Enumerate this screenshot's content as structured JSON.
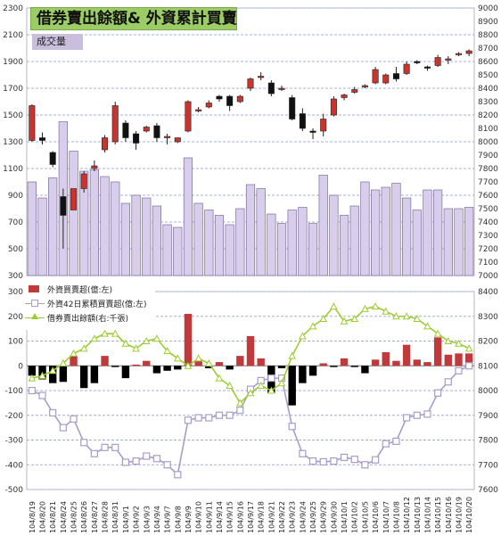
{
  "title": "借券賣出餘額& 外資累計買賣",
  "volume_label": "成交量",
  "legend": {
    "item1": "外資買賣超(億:左)",
    "item2": "外資42日累積買賣超(億:左)",
    "item3": "借券賣出餘額(右:千張)"
  },
  "colors": {
    "up_candle": "#c9342f",
    "down_candle": "#111111",
    "volume_bar": "#d8cdea",
    "volume_edge": "#6a5a8f",
    "foreign_buy": "#c0393b",
    "foreign_sell": "#000000",
    "cumulative": "#a99cc9",
    "lending": "#9ccc2e",
    "grid": "#9fb0d8"
  },
  "chart_data": [
    {
      "type": "candlestick",
      "title": "借券賣出餘額& 外資累計買賣",
      "left_axis": {
        "ylim": [
          300,
          2300
        ],
        "ticks": [
          "300",
          "500",
          "700",
          "900",
          "1100",
          "1300",
          "1500",
          "1700",
          "1900",
          "2100",
          "2300"
        ]
      },
      "right_axis": {
        "ylim": [
          7000,
          9000
        ],
        "ticks": [
          "7000",
          "7100",
          "7200",
          "7300",
          "7400",
          "7500",
          "7600",
          "7700",
          "7800",
          "7900",
          "8000",
          "8100",
          "8200",
          "8300",
          "8400",
          "8500",
          "8600",
          "8700",
          "8800",
          "8900",
          "9000"
        ]
      },
      "grid": true,
      "candles_right_axis": [
        {
          "open": 8010,
          "high": 8280,
          "low": 8000,
          "close": 8270
        },
        {
          "open": 8030,
          "high": 8070,
          "low": 7980,
          "close": 8010
        },
        {
          "open": 7920,
          "high": 7930,
          "low": 7810,
          "close": 7830
        },
        {
          "open": 7590,
          "high": 7650,
          "low": 7200,
          "close": 7450
        },
        {
          "open": 7490,
          "high": 7640,
          "low": 7490,
          "close": 7650
        },
        {
          "open": 7650,
          "high": 7780,
          "low": 7620,
          "close": 7760
        },
        {
          "open": 7800,
          "high": 7860,
          "low": 7780,
          "close": 7820
        },
        {
          "open": 7940,
          "high": 8050,
          "low": 7920,
          "close": 8030
        },
        {
          "open": 8000,
          "high": 8300,
          "low": 7980,
          "close": 8270
        },
        {
          "open": 8140,
          "high": 8160,
          "low": 8000,
          "close": 8030
        },
        {
          "open": 8060,
          "high": 8080,
          "low": 7940,
          "close": 7990
        },
        {
          "open": 8080,
          "high": 8120,
          "low": 8070,
          "close": 8110
        },
        {
          "open": 8120,
          "high": 8140,
          "low": 8000,
          "close": 8030
        },
        {
          "open": 8040,
          "high": 8060,
          "low": 7980,
          "close": 8040
        },
        {
          "open": 8000,
          "high": 8030,
          "low": 7990,
          "close": 8030
        },
        {
          "open": 8080,
          "high": 8310,
          "low": 8070,
          "close": 8300
        },
        {
          "open": 8240,
          "high": 8260,
          "low": 8220,
          "close": 8240
        },
        {
          "open": 8260,
          "high": 8310,
          "low": 8250,
          "close": 8290
        },
        {
          "open": 8340,
          "high": 8350,
          "low": 8300,
          "close": 8320
        },
        {
          "open": 8340,
          "high": 8350,
          "low": 8230,
          "close": 8270
        },
        {
          "open": 8300,
          "high": 8350,
          "low": 8290,
          "close": 8340
        },
        {
          "open": 8400,
          "high": 8480,
          "low": 8380,
          "close": 8470
        },
        {
          "open": 8480,
          "high": 8520,
          "low": 8460,
          "close": 8490
        },
        {
          "open": 8440,
          "high": 8460,
          "low": 8340,
          "close": 8360
        },
        {
          "open": 8390,
          "high": 8420,
          "low": 8380,
          "close": 8400
        },
        {
          "open": 8330,
          "high": 8350,
          "low": 8160,
          "close": 8170
        },
        {
          "open": 8210,
          "high": 8250,
          "low": 8080,
          "close": 8100
        },
        {
          "open": 8080,
          "high": 8100,
          "low": 8020,
          "close": 8070
        },
        {
          "open": 8080,
          "high": 8210,
          "low": 8040,
          "close": 8170
        },
        {
          "open": 8200,
          "high": 8340,
          "low": 8190,
          "close": 8320
        },
        {
          "open": 8330,
          "high": 8360,
          "low": 8310,
          "close": 8350
        },
        {
          "open": 8370,
          "high": 8410,
          "low": 8360,
          "close": 8390
        },
        {
          "open": 8410,
          "high": 8430,
          "low": 8400,
          "close": 8420
        },
        {
          "open": 8440,
          "high": 8560,
          "low": 8430,
          "close": 8540
        },
        {
          "open": 8440,
          "high": 8510,
          "low": 8430,
          "close": 8500
        },
        {
          "open": 8510,
          "high": 8560,
          "low": 8450,
          "close": 8470
        },
        {
          "open": 8510,
          "high": 8600,
          "low": 8500,
          "close": 8580
        },
        {
          "open": 8600,
          "high": 8610,
          "low": 8580,
          "close": 8590
        },
        {
          "open": 8560,
          "high": 8570,
          "low": 8530,
          "close": 8550
        },
        {
          "open": 8570,
          "high": 8650,
          "low": 8560,
          "close": 8630
        },
        {
          "open": 8620,
          "high": 8640,
          "low": 8580,
          "close": 8620
        },
        {
          "open": 8650,
          "high": 8670,
          "low": 8640,
          "close": 8660
        },
        {
          "open": 8660,
          "high": 8690,
          "low": 8640,
          "close": 8680
        }
      ],
      "volume_left_axis": [
        1000,
        880,
        1030,
        1450,
        1230,
        1080,
        1090,
        1040,
        1000,
        840,
        900,
        880,
        820,
        680,
        660,
        1180,
        840,
        790,
        750,
        680,
        800,
        980,
        950,
        760,
        690,
        790,
        810,
        690,
        1050,
        900,
        750,
        820,
        1000,
        940,
        960,
        990,
        880,
        790,
        940,
        940,
        800,
        800,
        810
      ]
    },
    {
      "type": "bar+line",
      "left_axis": {
        "ylim": [
          -500,
          300
        ],
        "ticks": [
          "-500",
          "-400",
          "-300",
          "-200",
          "-100",
          "0",
          "100",
          "200",
          "300"
        ]
      },
      "right_axis": {
        "ylim": [
          7600,
          8400
        ],
        "ticks": [
          "7600",
          "7700",
          "7800",
          "7900",
          "8000",
          "8100",
          "8200",
          "8300",
          "8400"
        ]
      },
      "grid": true,
      "legend_position": "top-left",
      "categories": [
        "104/8/19",
        "104/8/20",
        "104/8/21",
        "104/8/24",
        "104/8/25",
        "104/8/26",
        "104/8/27",
        "104/8/28",
        "104/8/31",
        "104/9/1",
        "104/9/2",
        "104/9/3",
        "104/9/4",
        "104/9/7",
        "104/9/8",
        "104/9/9",
        "104/9/10",
        "104/9/11",
        "104/9/14",
        "104/9/15",
        "104/9/16",
        "104/9/17",
        "104/9/18",
        "104/9/21",
        "104/9/22",
        "104/9/23",
        "104/9/24",
        "104/9/25",
        "104/9/29",
        "104/9/30",
        "104/10/1",
        "104/10/2",
        "104/10/5",
        "104/10/6",
        "104/10/7",
        "104/10/8",
        "104/10/12",
        "104/10/13",
        "104/10/14",
        "104/10/15",
        "104/10/16",
        "104/10/19",
        "104/10/20"
      ],
      "series": [
        {
          "name": "外資買賣超(億:左)",
          "type": "bar",
          "axis": "left",
          "values": [
            -40,
            -55,
            -70,
            -65,
            40,
            -90,
            -70,
            40,
            -5,
            -50,
            5,
            20,
            -30,
            -20,
            -15,
            210,
            20,
            -10,
            15,
            -15,
            40,
            120,
            30,
            -110,
            -10,
            -160,
            -70,
            -40,
            10,
            -5,
            30,
            -5,
            -30,
            25,
            55,
            20,
            85,
            25,
            15,
            115,
            45,
            50,
            50
          ]
        },
        {
          "name": "外資42日累積買賣超(億:左)",
          "type": "line",
          "axis": "left",
          "values": [
            -100,
            -120,
            -190,
            -250,
            -215,
            -310,
            -355,
            -330,
            -330,
            -390,
            -385,
            -365,
            -375,
            -400,
            -440,
            -220,
            -210,
            -210,
            -200,
            -200,
            -180,
            -95,
            -60,
            -50,
            -50,
            -245,
            -355,
            -385,
            -388,
            -385,
            -370,
            -378,
            -400,
            -380,
            -315,
            -305,
            -210,
            -200,
            -195,
            -110,
            -65,
            -20,
            0
          ]
        },
        {
          "name": "借券賣出餘額(右:千張)",
          "type": "line",
          "axis": "right",
          "values": [
            8050,
            8060,
            8080,
            8110,
            8150,
            8170,
            8210,
            8230,
            8230,
            8190,
            8170,
            8200,
            8210,
            8160,
            8130,
            8100,
            8130,
            8110,
            8050,
            8020,
            7950,
            7990,
            8020,
            8000,
            8030,
            8140,
            8220,
            8260,
            8290,
            8340,
            8280,
            8290,
            8330,
            8340,
            8320,
            8300,
            8300,
            8290,
            8260,
            8230,
            8200,
            8190,
            8170
          ]
        }
      ]
    }
  ]
}
